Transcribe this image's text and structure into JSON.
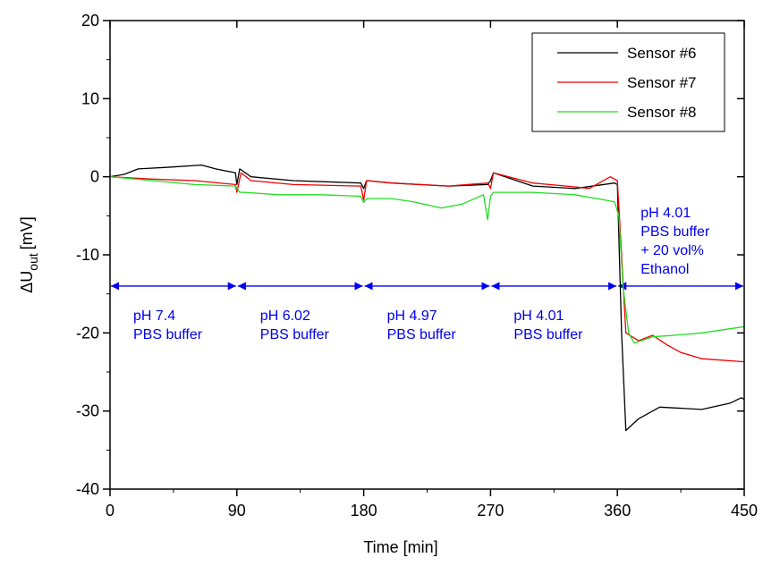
{
  "chart_data": {
    "type": "line",
    "xlabel": "Time [min]",
    "ylabel": {
      "main": "ΔU",
      "sub": "out",
      "unit": "[mV]"
    },
    "xlim": [
      0,
      450
    ],
    "xticks": [
      0,
      90,
      180,
      270,
      360,
      450
    ],
    "ylim": [
      -40,
      20
    ],
    "yticks": [
      -40,
      -30,
      -20,
      -10,
      0,
      10,
      20
    ],
    "legend": "upper right",
    "series": [
      {
        "name": "Sensor #6",
        "color": "#000000",
        "x": [
          0,
          10,
          20,
          40,
          65,
          75,
          89,
          90,
          92,
          100,
          130,
          178,
          180,
          182,
          200,
          240,
          268,
          270,
          272,
          300,
          330,
          358,
          360,
          363,
          366,
          375,
          390,
          420,
          440,
          448,
          450
        ],
        "values": [
          0,
          0.3,
          1,
          1.2,
          1.5,
          1,
          0.5,
          -1,
          1,
          0,
          -0.5,
          -0.8,
          -1.5,
          -0.5,
          -0.8,
          -1.2,
          -1,
          -0.5,
          0.5,
          -1.2,
          -1.5,
          -0.8,
          -1,
          -20,
          -32.5,
          -31,
          -29.5,
          -29.8,
          -29,
          -28.3,
          -28.5
        ]
      },
      {
        "name": "Sensor #7",
        "color": "#ee0000",
        "x": [
          0,
          30,
          60,
          89,
          90,
          93,
          100,
          130,
          178,
          180,
          182,
          200,
          240,
          268,
          270,
          272,
          300,
          330,
          340,
          355,
          360,
          363,
          366,
          375,
          385,
          395,
          405,
          420,
          450
        ],
        "values": [
          0,
          -0.3,
          -0.5,
          -1,
          -2,
          0.5,
          -0.5,
          -1,
          -1.2,
          -3,
          -0.5,
          -0.8,
          -1.2,
          -0.8,
          -1.5,
          0.5,
          -0.8,
          -1.3,
          -1.5,
          0,
          -0.5,
          -10,
          -20,
          -21,
          -20.3,
          -21.5,
          -22.5,
          -23.3,
          -23.7
        ]
      },
      {
        "name": "Sensor #8",
        "color": "#22dd22",
        "x": [
          0,
          30,
          60,
          89,
          92,
          95,
          120,
          150,
          178,
          180,
          182,
          200,
          215,
          235,
          250,
          265,
          268,
          270,
          272,
          300,
          330,
          358,
          361,
          364,
          368,
          372,
          385,
          400,
          420,
          450
        ],
        "values": [
          0,
          -0.5,
          -1,
          -1.2,
          -2,
          -2,
          -2.3,
          -2.3,
          -2.5,
          -3.3,
          -2.8,
          -2.8,
          -3.2,
          -4,
          -3.5,
          -2.3,
          -5.5,
          -2.5,
          -2,
          -2,
          -2.3,
          -3.2,
          -5,
          -14,
          -20,
          -21.3,
          -20.5,
          -20.3,
          -20,
          -19.2
        ]
      }
    ],
    "annotations": [
      {
        "span": [
          0,
          90
        ],
        "y": -14,
        "lines": [
          "pH 7.4",
          "PBS buffer"
        ],
        "position": "below"
      },
      {
        "span": [
          90,
          180
        ],
        "y": -14,
        "lines": [
          "pH 6.02",
          "PBS buffer"
        ],
        "position": "below"
      },
      {
        "span": [
          180,
          270
        ],
        "y": -14,
        "lines": [
          "pH 4.97",
          "PBS buffer"
        ],
        "position": "below"
      },
      {
        "span": [
          270,
          360
        ],
        "y": -14,
        "lines": [
          "pH 4.01",
          "PBS buffer"
        ],
        "position": "below"
      },
      {
        "span": [
          360,
          450
        ],
        "y": -14,
        "lines": [
          "pH 4.01",
          "PBS buffer",
          "+ 20 vol%",
          "Ethanol"
        ],
        "position": "above"
      }
    ],
    "annotation_color": "#0000ee"
  }
}
